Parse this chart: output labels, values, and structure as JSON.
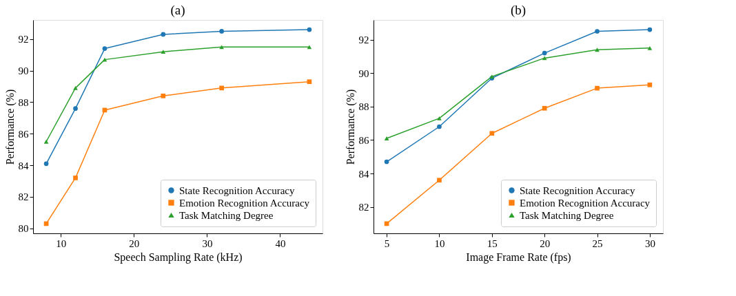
{
  "chart_data": [
    {
      "type": "line",
      "title": "(a)",
      "xlabel": "Speech Sampling Rate (kHz)",
      "ylabel": "Performance (%)",
      "x": [
        8,
        12,
        16,
        24,
        32,
        44
      ],
      "xlim": [
        6.2,
        45.8
      ],
      "xticks": [
        10,
        20,
        30,
        40
      ],
      "ylim": [
        79.685,
        93.215
      ],
      "yticks": [
        80,
        82,
        84,
        86,
        88,
        90,
        92
      ],
      "grid": false,
      "legend": "bottom right",
      "line_style": "solid",
      "series": [
        {
          "name": "State Recognition Accuracy",
          "color": "#1f77b4",
          "marker": "circle",
          "values": [
            84.1,
            87.6,
            91.4,
            92.3,
            92.5,
            92.6
          ]
        },
        {
          "name": "Emotion Recognition Accuracy",
          "color": "#ff7f0e",
          "marker": "square",
          "values": [
            80.3,
            83.2,
            87.5,
            88.4,
            88.9,
            89.3
          ]
        },
        {
          "name": "Task Matching Degree",
          "color": "#2ca02c",
          "marker": "triangle",
          "values": [
            85.5,
            88.9,
            90.7,
            91.2,
            91.5,
            91.5
          ]
        }
      ]
    },
    {
      "type": "line",
      "title": "(b)",
      "xlabel": "Image Frame Rate (fps)",
      "ylabel": "Performance (%)",
      "x": [
        5,
        10,
        15,
        20,
        25,
        30
      ],
      "xlim": [
        3.75,
        31.25
      ],
      "xticks": [
        5,
        10,
        15,
        20,
        25,
        30
      ],
      "ylim": [
        80.42,
        93.18
      ],
      "yticks": [
        82,
        84,
        86,
        88,
        90,
        92
      ],
      "grid": false,
      "legend": "bottom right",
      "line_style": "solid",
      "series": [
        {
          "name": "State Recognition Accuracy",
          "color": "#1f77b4",
          "marker": "circle",
          "values": [
            84.7,
            86.8,
            89.7,
            91.2,
            92.5,
            92.6
          ]
        },
        {
          "name": "Emotion Recognition Accuracy",
          "color": "#ff7f0e",
          "marker": "square",
          "values": [
            81.0,
            83.6,
            86.4,
            87.9,
            89.1,
            89.3
          ]
        },
        {
          "name": "Task Matching Degree",
          "color": "#2ca02c",
          "marker": "triangle",
          "values": [
            86.1,
            87.3,
            89.8,
            90.9,
            91.4,
            91.5
          ]
        }
      ]
    }
  ]
}
